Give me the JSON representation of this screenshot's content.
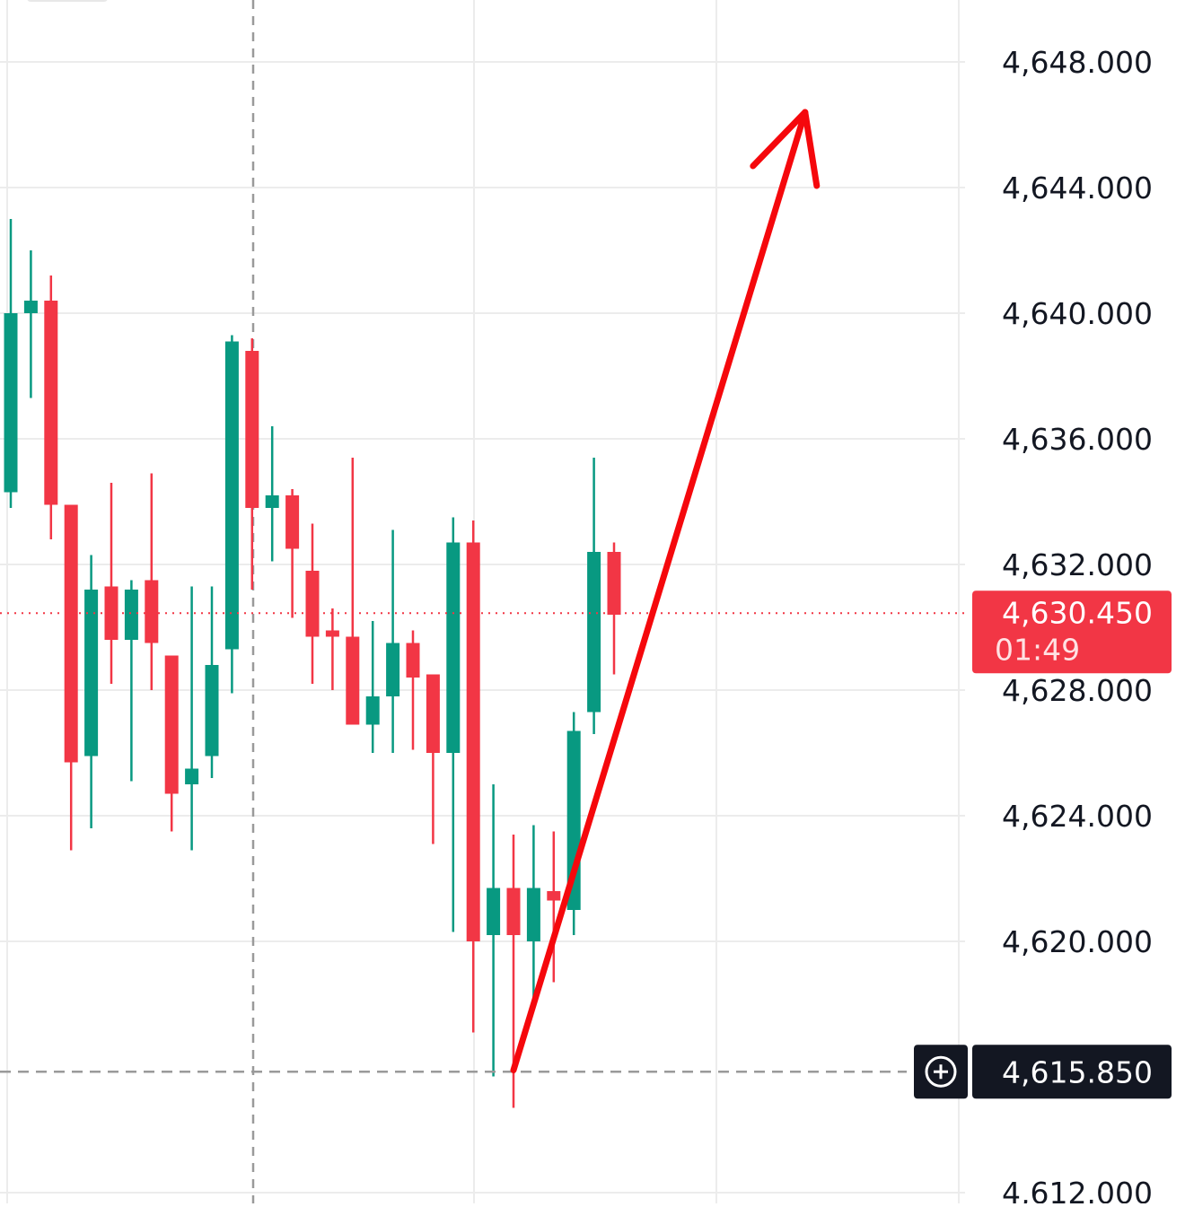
{
  "chart_data": {
    "type": "candlestick",
    "y_axis": {
      "ticks": [
        "4,648.000",
        "4,644.000",
        "4,640.000",
        "4,636.000",
        "4,632.000",
        "4,628.000",
        "4,624.000",
        "4,620.000",
        "4,612.000"
      ],
      "tick_values": [
        4648,
        4644,
        4640,
        4636,
        4632,
        4628,
        4624,
        4620,
        4612
      ]
    },
    "current_price": {
      "label": "4,630.450",
      "value": 4630.45,
      "countdown": "01:49",
      "color": "#f23645"
    },
    "crosshair": {
      "label": "4,615.850",
      "value": 4615.85,
      "plus_icon": "plus-circle-icon"
    },
    "candles": [
      {
        "open": 4634.3,
        "high": 4643.0,
        "low": 4633.8,
        "close": 4640.0
      },
      {
        "open": 4640.0,
        "high": 4642.0,
        "low": 4637.3,
        "close": 4640.4
      },
      {
        "open": 4640.4,
        "high": 4641.2,
        "low": 4632.8,
        "close": 4633.9
      },
      {
        "open": 4633.9,
        "high": 4633.9,
        "low": 4622.9,
        "close": 4625.7
      },
      {
        "open": 4625.9,
        "high": 4632.3,
        "low": 4623.6,
        "close": 4631.2
      },
      {
        "open": 4631.3,
        "high": 4634.6,
        "low": 4628.2,
        "close": 4629.6
      },
      {
        "open": 4629.6,
        "high": 4631.5,
        "low": 4625.1,
        "close": 4631.2
      },
      {
        "open": 4631.5,
        "high": 4634.9,
        "low": 4628.0,
        "close": 4629.5
      },
      {
        "open": 4629.1,
        "high": 4629.1,
        "low": 4623.5,
        "close": 4624.7
      },
      {
        "open": 4625.0,
        "high": 4631.3,
        "low": 4622.9,
        "close": 4625.5
      },
      {
        "open": 4625.9,
        "high": 4631.3,
        "low": 4625.2,
        "close": 4628.8
      },
      {
        "open": 4629.3,
        "high": 4639.3,
        "low": 4627.9,
        "close": 4639.1
      },
      {
        "open": 4638.8,
        "high": 4639.2,
        "low": 4631.2,
        "close": 4633.8
      },
      {
        "open": 4633.8,
        "high": 4636.4,
        "low": 4632.1,
        "close": 4634.2
      },
      {
        "open": 4634.2,
        "high": 4634.4,
        "low": 4630.3,
        "close": 4632.5
      },
      {
        "open": 4631.8,
        "high": 4633.3,
        "low": 4628.2,
        "close": 4629.7
      },
      {
        "open": 4629.9,
        "high": 4630.6,
        "low": 4628.0,
        "close": 4629.7
      },
      {
        "open": 4629.7,
        "high": 4635.4,
        "low": 4627.0,
        "close": 4626.9
      },
      {
        "open": 4626.9,
        "high": 4630.2,
        "low": 4626.0,
        "close": 4627.8
      },
      {
        "open": 4627.8,
        "high": 4633.1,
        "low": 4626.0,
        "close": 4629.5
      },
      {
        "open": 4629.5,
        "high": 4629.9,
        "low": 4626.1,
        "close": 4628.4
      },
      {
        "open": 4628.5,
        "high": 4628.5,
        "low": 4623.1,
        "close": 4626.0
      },
      {
        "open": 4626.0,
        "high": 4633.5,
        "low": 4620.3,
        "close": 4632.7
      },
      {
        "open": 4632.7,
        "high": 4633.4,
        "low": 4617.1,
        "close": 4620.0
      },
      {
        "open": 4620.2,
        "high": 4625.0,
        "low": 4615.7,
        "close": 4621.7
      },
      {
        "open": 4621.7,
        "high": 4623.4,
        "low": 4614.7,
        "close": 4620.2
      },
      {
        "open": 4620.0,
        "high": 4623.7,
        "low": 4618.2,
        "close": 4621.7
      },
      {
        "open": 4621.6,
        "high": 4623.5,
        "low": 4618.7,
        "close": 4621.3
      },
      {
        "open": 4621.0,
        "high": 4627.3,
        "low": 4620.2,
        "close": 4626.7
      },
      {
        "open": 4627.3,
        "high": 4635.4,
        "low": 4626.6,
        "close": 4632.4
      },
      {
        "open": 4632.4,
        "high": 4632.7,
        "low": 4628.5,
        "close": 4630.4
      }
    ],
    "colors": {
      "up": "#089981",
      "down": "#f23645",
      "arrow": "#f5080c",
      "grid": "#ececec"
    },
    "annotation": {
      "type": "arrow",
      "from": {
        "candle": 25,
        "value": 4615.9
      },
      "to": {
        "candle": 39.5,
        "value": 4646.4
      }
    }
  }
}
